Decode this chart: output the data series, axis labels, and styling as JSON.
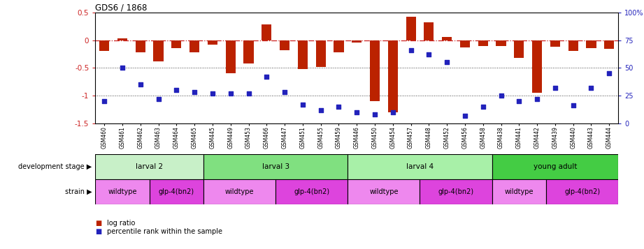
{
  "title": "GDS6 / 1868",
  "samples": [
    "GSM460",
    "GSM461",
    "GSM462",
    "GSM463",
    "GSM464",
    "GSM465",
    "GSM445",
    "GSM449",
    "GSM453",
    "GSM466",
    "GSM447",
    "GSM451",
    "GSM455",
    "GSM459",
    "GSM446",
    "GSM450",
    "GSM454",
    "GSM457",
    "GSM448",
    "GSM452",
    "GSM456",
    "GSM458",
    "GSM438",
    "GSM441",
    "GSM442",
    "GSM439",
    "GSM440",
    "GSM443",
    "GSM444"
  ],
  "log_ratio": [
    -0.2,
    0.03,
    -0.22,
    -0.38,
    -0.15,
    -0.22,
    -0.08,
    -0.6,
    -0.42,
    0.28,
    -0.18,
    -0.52,
    -0.48,
    -0.22,
    -0.04,
    -1.1,
    -1.3,
    0.42,
    0.32,
    0.06,
    -0.13,
    -0.1,
    -0.1,
    -0.32,
    -0.95,
    -0.12,
    -0.2,
    -0.14,
    -0.16
  ],
  "percentile": [
    20,
    50,
    35,
    22,
    30,
    28,
    27,
    27,
    27,
    42,
    28,
    17,
    12,
    15,
    10,
    8,
    10,
    66,
    62,
    55,
    7,
    15,
    25,
    20,
    22,
    32,
    16,
    32,
    45
  ],
  "dev_stages": [
    {
      "label": "larval 2",
      "start": 0,
      "end": 6,
      "color": "#c8f0c8"
    },
    {
      "label": "larval 3",
      "start": 6,
      "end": 14,
      "color": "#80e080"
    },
    {
      "label": "larval 4",
      "start": 14,
      "end": 22,
      "color": "#a8f0a8"
    },
    {
      "label": "young adult",
      "start": 22,
      "end": 29,
      "color": "#44cc44"
    }
  ],
  "strains": [
    {
      "label": "wildtype",
      "start": 0,
      "end": 3,
      "color": "#ee88ee"
    },
    {
      "label": "glp-4(bn2)",
      "start": 3,
      "end": 6,
      "color": "#dd44dd"
    },
    {
      "label": "wildtype",
      "start": 6,
      "end": 10,
      "color": "#ee88ee"
    },
    {
      "label": "glp-4(bn2)",
      "start": 10,
      "end": 14,
      "color": "#dd44dd"
    },
    {
      "label": "wildtype",
      "start": 14,
      "end": 18,
      "color": "#ee88ee"
    },
    {
      "label": "glp-4(bn2)",
      "start": 18,
      "end": 22,
      "color": "#dd44dd"
    },
    {
      "label": "wildtype",
      "start": 22,
      "end": 25,
      "color": "#ee88ee"
    },
    {
      "label": "glp-4(bn2)",
      "start": 25,
      "end": 29,
      "color": "#dd44dd"
    }
  ],
  "ylim": [
    -1.5,
    0.5
  ],
  "y2lim": [
    0,
    100
  ],
  "yticks_left": [
    0.5,
    0.0,
    -0.5,
    -1.0,
    -1.5
  ],
  "ytick_labels_left": [
    "0.5",
    "0",
    "-0.5",
    "-1",
    "-1.5"
  ],
  "y2ticks": [
    0,
    25,
    50,
    75,
    100
  ],
  "y2tick_labels": [
    "0",
    "25",
    "50",
    "75",
    "100%"
  ],
  "bar_color": "#bb2200",
  "dot_color": "#2222bb",
  "ref_line_color": "#cc2222",
  "dot_line_color": "#444444",
  "background_color": "#ffffff",
  "fig_width": 9.21,
  "fig_height": 3.57,
  "dpi": 100
}
